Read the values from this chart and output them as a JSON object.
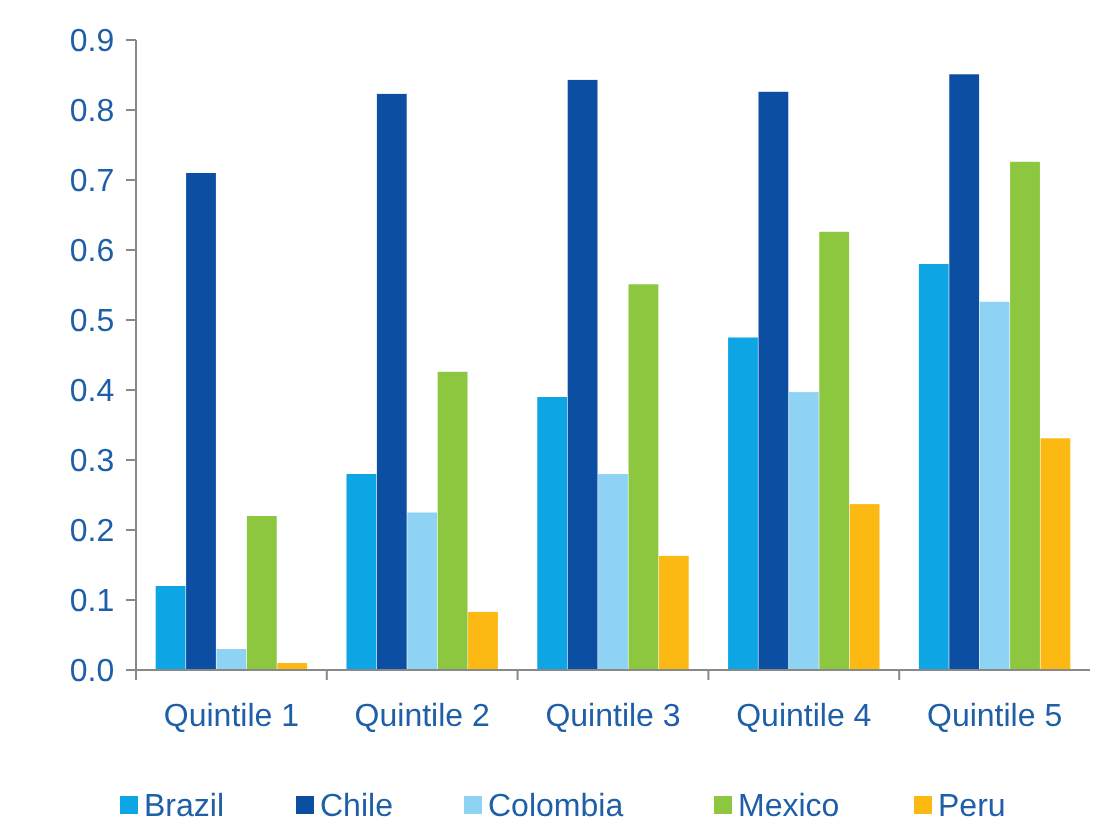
{
  "chart_data": {
    "type": "bar",
    "categories": [
      "Quintile 1",
      "Quintile 2",
      "Quintile 3",
      "Quintile 4",
      "Quintile 5"
    ],
    "series": [
      {
        "name": "Brazil",
        "color": "#0ea5e4",
        "values": [
          0.12,
          0.28,
          0.39,
          0.475,
          0.58
        ]
      },
      {
        "name": "Chile",
        "color": "#0b4ea2",
        "values": [
          0.71,
          0.823,
          0.843,
          0.826,
          0.851
        ]
      },
      {
        "name": "Colombia",
        "color": "#8fd3f4",
        "values": [
          0.03,
          0.225,
          0.28,
          0.397,
          0.526
        ]
      },
      {
        "name": "Mexico",
        "color": "#8dc63f",
        "values": [
          0.22,
          0.426,
          0.551,
          0.626,
          0.726
        ]
      },
      {
        "name": "Peru",
        "color": "#fdb913",
        "values": [
          0.01,
          0.083,
          0.163,
          0.237,
          0.331
        ]
      }
    ],
    "ylim": [
      0,
      0.9
    ],
    "yticks": [
      {
        "value": 0,
        "label": "0.0"
      },
      0.1,
      0.2,
      0.3,
      0.4,
      0.5,
      0.6,
      0.7,
      0.8,
      0.9
    ],
    "grid": false,
    "legend": "bottom"
  }
}
